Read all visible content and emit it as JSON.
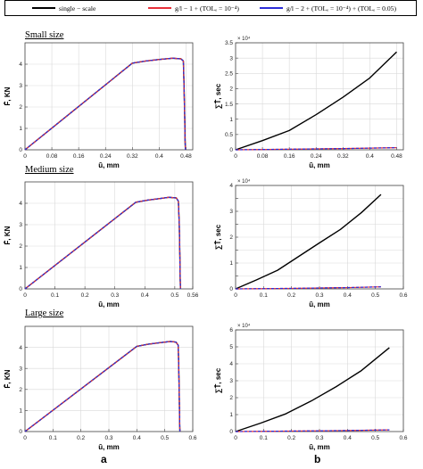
{
  "legend": {
    "entries": [
      {
        "label": "single − scale",
        "color": "#000000"
      },
      {
        "label": "g/l − 1 + (TOLₑ = 10⁻⁴)",
        "color": "#e8303a"
      },
      {
        "label": "g/l − 2 + (TOLₑ = 10⁻⁴) + (TOLₑ = 0.05)",
        "color": "#2d2dd8"
      }
    ]
  },
  "sections": {
    "small": "Small size",
    "medium": "Medium size",
    "large": "Large size"
  },
  "panel_letters": {
    "a": "a",
    "b": "b"
  },
  "colors": {
    "single": "#000000",
    "gl1": "#e8303a",
    "gl2": "#2d2dd8"
  },
  "chart_data": [
    {
      "type": "line",
      "id": "small-force",
      "xlabel": "ū, mm",
      "ylabel": "F̄, KN",
      "xlim": [
        0,
        0.5
      ],
      "ylim": [
        0,
        5
      ],
      "xticks": [
        0,
        0.08,
        0.16,
        0.24,
        0.32,
        0.4,
        0.48
      ],
      "xticklabels": [
        "0",
        "0.08",
        "0.16",
        "0.24",
        "0.32",
        "0.4",
        "0.48"
      ],
      "yticks": [
        0,
        1,
        2,
        3,
        4
      ],
      "yticklabels": [
        "0",
        "1",
        "2",
        "3",
        "4"
      ],
      "grid": true,
      "series": [
        {
          "name": "single − scale",
          "color": "#000000",
          "x": [
            0,
            0.32,
            0.36,
            0.4,
            0.44,
            0.465,
            0.472,
            0.474,
            0.476,
            0.477,
            0.478
          ],
          "y": [
            0,
            4.05,
            4.15,
            4.22,
            4.28,
            4.25,
            4.15,
            3.0,
            1.5,
            0.5,
            0
          ]
        },
        {
          "name": "g/l − 1",
          "color": "#e8303a",
          "x": [
            0,
            0.32,
            0.36,
            0.4,
            0.44,
            0.465,
            0.472,
            0.474,
            0.476,
            0.477,
            0.478
          ],
          "y": [
            0,
            4.05,
            4.15,
            4.22,
            4.28,
            4.25,
            4.15,
            3.0,
            1.5,
            0.5,
            0
          ]
        },
        {
          "name": "g/l − 2",
          "color": "#2d2dd8",
          "x": [
            0,
            0.32,
            0.36,
            0.4,
            0.44,
            0.465,
            0.472,
            0.474,
            0.476,
            0.477,
            0.478
          ],
          "y": [
            0,
            4.05,
            4.15,
            4.22,
            4.28,
            4.25,
            4.15,
            3.0,
            1.5,
            0.5,
            0
          ]
        }
      ]
    },
    {
      "type": "line",
      "id": "small-time",
      "xlabel": "ū, mm",
      "ylabel": "∑T̄, sec",
      "xlim": [
        0,
        0.5
      ],
      "ylim": [
        0,
        3.5
      ],
      "exponent": "× 10⁴",
      "xticks": [
        0,
        0.08,
        0.16,
        0.24,
        0.32,
        0.4,
        0.48
      ],
      "xticklabels": [
        "0",
        "0.08",
        "0.16",
        "0.24",
        "0.32",
        "0.4",
        "0.48"
      ],
      "yticks": [
        0,
        0.5,
        1,
        1.5,
        2,
        2.5,
        3,
        3.5
      ],
      "yticklabels": [
        "0",
        "0.5",
        "1",
        "1.5",
        "2",
        "2.5",
        "3",
        "3.5"
      ],
      "grid": true,
      "series": [
        {
          "name": "single − scale",
          "color": "#000000",
          "x": [
            0,
            0.08,
            0.16,
            0.24,
            0.32,
            0.4,
            0.48
          ],
          "y": [
            0,
            0.3,
            0.63,
            1.15,
            1.72,
            2.35,
            3.2
          ]
        },
        {
          "name": "g/l − 1",
          "color": "#e8303a",
          "x": [
            0,
            0.16,
            0.32,
            0.48
          ],
          "y": [
            0,
            0.02,
            0.04,
            0.07
          ]
        },
        {
          "name": "g/l − 2",
          "color": "#2d2dd8",
          "x": [
            0,
            0.16,
            0.32,
            0.48
          ],
          "y": [
            0,
            0.02,
            0.04,
            0.07
          ]
        }
      ]
    },
    {
      "type": "line",
      "id": "medium-force",
      "xlabel": "ū, mm",
      "ylabel": "F̄, KN",
      "xlim": [
        0,
        0.56
      ],
      "ylim": [
        0,
        5
      ],
      "xticks": [
        0,
        0.1,
        0.2,
        0.3,
        0.4,
        0.5,
        0.56
      ],
      "xticklabels": [
        "0",
        "0.1",
        "0.2",
        "0.3",
        "0.4",
        "0.5",
        "0.56"
      ],
      "yticks": [
        0,
        1,
        2,
        3,
        4
      ],
      "yticklabels": [
        "0",
        "1",
        "2",
        "3",
        "4"
      ],
      "grid": true,
      "series": [
        {
          "name": "single − scale",
          "color": "#000000",
          "x": [
            0,
            0.37,
            0.41,
            0.45,
            0.48,
            0.505,
            0.512,
            0.515,
            0.517,
            0.518,
            0.519
          ],
          "y": [
            0,
            4.05,
            4.15,
            4.22,
            4.28,
            4.25,
            4.1,
            3.0,
            1.5,
            0.5,
            0
          ]
        },
        {
          "name": "g/l − 1",
          "color": "#e8303a",
          "x": [
            0,
            0.37,
            0.41,
            0.45,
            0.48,
            0.505,
            0.512,
            0.515,
            0.517,
            0.518,
            0.519
          ],
          "y": [
            0,
            4.05,
            4.15,
            4.22,
            4.28,
            4.25,
            4.1,
            3.0,
            1.5,
            0.5,
            0
          ]
        },
        {
          "name": "g/l − 2",
          "color": "#2d2dd8",
          "x": [
            0,
            0.37,
            0.41,
            0.45,
            0.48,
            0.505,
            0.512,
            0.515,
            0.517,
            0.518,
            0.519
          ],
          "y": [
            0,
            4.05,
            4.15,
            4.22,
            4.28,
            4.25,
            4.1,
            3.0,
            1.5,
            0.5,
            0
          ]
        }
      ]
    },
    {
      "type": "line",
      "id": "medium-time",
      "xlabel": "ū, mm",
      "ylabel": "∑T̄, sec",
      "xlim": [
        0,
        0.6
      ],
      "ylim": [
        0,
        4
      ],
      "exponent": "× 10⁴",
      "xticks": [
        0,
        0.1,
        0.2,
        0.3,
        0.4,
        0.5,
        0.6
      ],
      "xticklabels": [
        "0",
        "0.1",
        "0.2",
        "0.3",
        "0.4",
        "0.5",
        "0.6"
      ],
      "yticks": [
        0,
        0.5,
        1,
        1.5,
        2,
        2.5,
        3,
        3.5,
        4
      ],
      "yticklabels": [
        "0",
        "",
        "1",
        "",
        "2",
        "",
        "3",
        "",
        "4"
      ],
      "grid": true,
      "series": [
        {
          "name": "single − scale",
          "color": "#000000",
          "x": [
            0,
            0.075,
            0.15,
            0.225,
            0.3,
            0.375,
            0.45,
            0.52
          ],
          "y": [
            0,
            0.35,
            0.72,
            1.25,
            1.78,
            2.3,
            2.95,
            3.65
          ]
        },
        {
          "name": "g/l − 1",
          "color": "#e8303a",
          "x": [
            0,
            0.2,
            0.4,
            0.52
          ],
          "y": [
            0,
            0.02,
            0.05,
            0.08
          ]
        },
        {
          "name": "g/l − 2",
          "color": "#2d2dd8",
          "x": [
            0,
            0.2,
            0.4,
            0.52
          ],
          "y": [
            0,
            0.02,
            0.05,
            0.08
          ]
        }
      ]
    },
    {
      "type": "line",
      "id": "large-force",
      "xlabel": "ū, mm",
      "ylabel": "F̄, KN",
      "xlim": [
        0,
        0.6
      ],
      "ylim": [
        0,
        5
      ],
      "xticks": [
        0,
        0.1,
        0.2,
        0.3,
        0.4,
        0.5,
        0.6
      ],
      "xticklabels": [
        "0",
        "0.1",
        "0.2",
        "0.3",
        "0.4",
        "0.5",
        "0.6"
      ],
      "yticks": [
        0,
        1,
        2,
        3,
        4
      ],
      "yticklabels": [
        "0",
        "1",
        "2",
        "3",
        "4"
      ],
      "grid": true,
      "series": [
        {
          "name": "single − scale",
          "color": "#000000",
          "x": [
            0,
            0.4,
            0.44,
            0.48,
            0.52,
            0.54,
            0.548,
            0.55,
            0.552,
            0.553,
            0.554
          ],
          "y": [
            0,
            4.05,
            4.15,
            4.22,
            4.28,
            4.25,
            4.1,
            3.0,
            1.5,
            0.5,
            0
          ]
        },
        {
          "name": "g/l − 1",
          "color": "#e8303a",
          "x": [
            0,
            0.4,
            0.44,
            0.48,
            0.52,
            0.54,
            0.548,
            0.55,
            0.552,
            0.553,
            0.554
          ],
          "y": [
            0,
            4.05,
            4.15,
            4.22,
            4.28,
            4.25,
            4.1,
            3.0,
            1.5,
            0.5,
            0
          ]
        },
        {
          "name": "g/l − 2",
          "color": "#2d2dd8",
          "x": [
            0,
            0.4,
            0.44,
            0.48,
            0.52,
            0.54,
            0.548,
            0.55,
            0.552,
            0.553,
            0.554
          ],
          "y": [
            0,
            4.05,
            4.15,
            4.22,
            4.28,
            4.25,
            4.1,
            3.0,
            1.5,
            0.5,
            0
          ]
        }
      ]
    },
    {
      "type": "line",
      "id": "large-time",
      "xlabel": "ū, mm",
      "ylabel": "∑T̄, sec",
      "xlim": [
        0,
        0.6
      ],
      "ylim": [
        0,
        6
      ],
      "exponent": "× 10⁴",
      "xticks": [
        0,
        0.1,
        0.2,
        0.3,
        0.4,
        0.5,
        0.6
      ],
      "xticklabels": [
        "0",
        "0.1",
        "0.2",
        "0.3",
        "0.4",
        "0.5",
        "0.6"
      ],
      "yticks": [
        0,
        1,
        2,
        3,
        4,
        5,
        6
      ],
      "yticklabels": [
        "0",
        "1",
        "2",
        "3",
        "4",
        "5",
        "6"
      ],
      "grid": true,
      "series": [
        {
          "name": "single − scale",
          "color": "#000000",
          "x": [
            0,
            0.09,
            0.18,
            0.27,
            0.36,
            0.45,
            0.55
          ],
          "y": [
            0,
            0.5,
            1.05,
            1.8,
            2.65,
            3.6,
            4.95
          ]
        },
        {
          "name": "g/l − 1",
          "color": "#e8303a",
          "x": [
            0,
            0.2,
            0.4,
            0.55
          ],
          "y": [
            0,
            0.03,
            0.06,
            0.1
          ]
        },
        {
          "name": "g/l − 2",
          "color": "#2d2dd8",
          "x": [
            0,
            0.2,
            0.4,
            0.55
          ],
          "y": [
            0,
            0.03,
            0.06,
            0.1
          ]
        }
      ]
    }
  ]
}
